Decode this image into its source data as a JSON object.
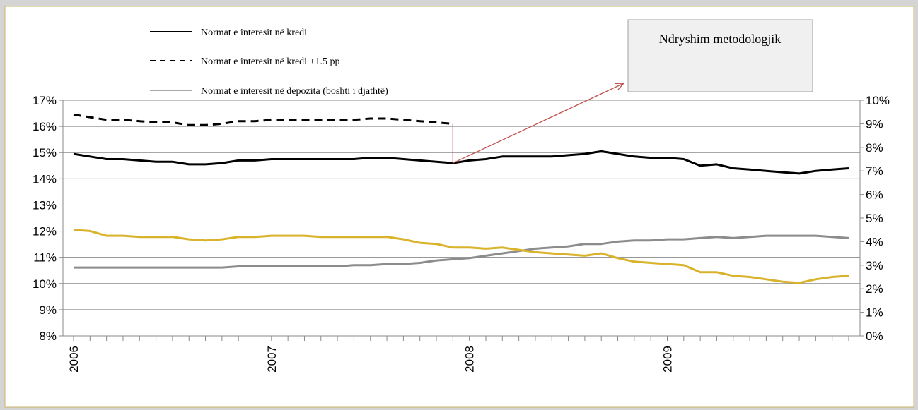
{
  "chart_data": {
    "type": "line",
    "title": "",
    "xlabel": "",
    "ylabel": "",
    "y_left": {
      "min": 8,
      "max": 17,
      "step": 1,
      "tick_labels": [
        "8%",
        "9%",
        "10%",
        "11%",
        "12%",
        "13%",
        "14%",
        "15%",
        "16%",
        "17%"
      ]
    },
    "y_right": {
      "min": 0,
      "max": 10,
      "step": 1,
      "tick_labels": [
        "0%",
        "1%",
        "2%",
        "3%",
        "4%",
        "5%",
        "6%",
        "7%",
        "8%",
        "9%",
        "10%"
      ]
    },
    "x_tick_labels": [
      "2006",
      "2007",
      "2008",
      "2009"
    ],
    "months": 48,
    "grid": true,
    "legend_placement": "top-left",
    "annotation": {
      "text": "Ndryshim metodologjik",
      "from_month_index": 23,
      "from_value": 14.6
    },
    "series": [
      {
        "name": "Normat e interesit në kredi",
        "axis": "left",
        "style": "solid",
        "color": "#000000",
        "values": [
          14.95,
          14.85,
          14.75,
          14.75,
          14.7,
          14.65,
          14.65,
          14.55,
          14.55,
          14.6,
          14.7,
          14.7,
          14.75,
          14.75,
          14.75,
          14.75,
          14.75,
          14.75,
          14.8,
          14.8,
          14.75,
          14.7,
          14.65,
          14.6,
          14.7,
          14.75,
          14.85,
          14.85,
          14.85,
          14.85,
          14.9,
          14.95,
          15.05,
          14.95,
          14.85,
          14.8,
          14.8,
          14.75,
          14.5,
          14.55,
          14.4,
          14.35,
          14.3,
          14.25,
          14.2,
          14.3,
          14.35,
          14.4
        ]
      },
      {
        "name": "Normat e interesit në kredi +1.5 pp",
        "axis": "left",
        "style": "dashed",
        "color": "#000000",
        "values": [
          16.45,
          16.35,
          16.25,
          16.25,
          16.2,
          16.15,
          16.15,
          16.05,
          16.05,
          16.1,
          16.2,
          16.2,
          16.25,
          16.25,
          16.25,
          16.25,
          16.25,
          16.25,
          16.3,
          16.3,
          16.25,
          16.2,
          16.15,
          16.1
        ]
      },
      {
        "name": "Normat e interesit në depozita (boshti i djathtë)",
        "axis": "right",
        "style": "solid",
        "color": "#8c8c8c",
        "values": [
          2.9,
          2.9,
          2.9,
          2.9,
          2.9,
          2.9,
          2.9,
          2.9,
          2.9,
          2.9,
          2.95,
          2.95,
          2.95,
          2.95,
          2.95,
          2.95,
          2.95,
          3.0,
          3.0,
          3.05,
          3.05,
          3.1,
          3.2,
          3.25,
          3.3,
          3.4,
          3.5,
          3.6,
          3.7,
          3.75,
          3.8,
          3.9,
          3.9,
          4.0,
          4.05,
          4.05,
          4.1,
          4.1,
          4.15,
          4.2,
          4.15,
          4.2,
          4.25,
          4.25,
          4.25,
          4.25,
          4.2,
          4.15
        ]
      },
      {
        "name": "",
        "axis": "right",
        "style": "solid",
        "color": "#d9b32b",
        "values": [
          4.5,
          4.45,
          4.25,
          4.25,
          4.2,
          4.2,
          4.2,
          4.1,
          4.05,
          4.1,
          4.2,
          4.2,
          4.25,
          4.25,
          4.25,
          4.2,
          4.2,
          4.2,
          4.2,
          4.2,
          4.1,
          3.95,
          3.9,
          3.75,
          3.75,
          3.7,
          3.75,
          3.65,
          3.55,
          3.5,
          3.45,
          3.4,
          3.5,
          3.3,
          3.15,
          3.1,
          3.05,
          3.0,
          2.7,
          2.7,
          2.55,
          2.5,
          2.4,
          2.3,
          2.25,
          2.4,
          2.5,
          2.55
        ]
      }
    ]
  }
}
